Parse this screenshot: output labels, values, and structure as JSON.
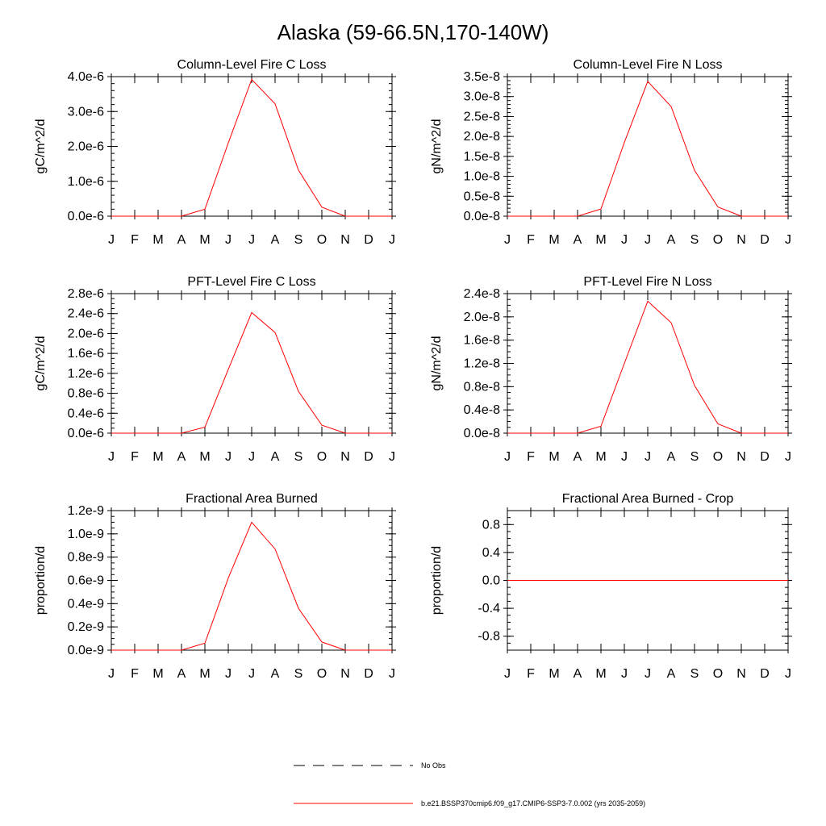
{
  "figure_title": "Alaska (59-66.5N,170-140W)",
  "months": [
    "J",
    "F",
    "M",
    "A",
    "M",
    "J",
    "J",
    "A",
    "S",
    "O",
    "N",
    "D",
    "J"
  ],
  "legend": {
    "obs_label": "No Obs",
    "model_label": "b.e21.BSSP370cmip6.f09_g17.CMIP6-SSP3-7.0.002 (yrs 2035-2059)",
    "model_color": "#ff0000",
    "obs_color": "#000000"
  },
  "chart_data": [
    {
      "type": "line",
      "title": "Column-Level Fire C Loss",
      "ylabel": "gC/m^2/d",
      "ylim": [
        0,
        4.0
      ],
      "yticks": [
        0,
        1,
        2,
        3,
        4
      ],
      "ytick_labels": [
        "0.0e-6",
        "1.0e-6",
        "2.0e-6",
        "3.0e-6",
        "4.0e-6"
      ],
      "minor_step": 0.2,
      "series": [
        {
          "name": "model",
          "values": [
            0,
            0,
            0,
            0,
            0.2,
            2.1,
            3.92,
            3.22,
            1.32,
            0.26,
            0,
            0,
            0
          ]
        }
      ]
    },
    {
      "type": "line",
      "title": "Column-Level Fire N Loss",
      "ylabel": "gN/m^2/d",
      "ylim": [
        0,
        3.5
      ],
      "yticks": [
        0,
        0.5,
        1.0,
        1.5,
        2.0,
        2.5,
        3.0,
        3.5
      ],
      "ytick_labels": [
        "0.0e-8",
        "0.5e-8",
        "1.0e-8",
        "1.5e-8",
        "2.0e-8",
        "2.5e-8",
        "3.0e-8",
        "3.5e-8"
      ],
      "minor_step": 0.1,
      "series": [
        {
          "name": "model",
          "values": [
            0,
            0,
            0,
            0,
            0.18,
            1.85,
            3.38,
            2.75,
            1.15,
            0.23,
            0,
            0,
            0
          ]
        }
      ]
    },
    {
      "type": "line",
      "title": "PFT-Level Fire C Loss",
      "ylabel": "gC/m^2/d",
      "ylim": [
        0,
        2.8
      ],
      "yticks": [
        0,
        0.4,
        0.8,
        1.2,
        1.6,
        2.0,
        2.4,
        2.8
      ],
      "ytick_labels": [
        "0.0e-6",
        "0.4e-6",
        "0.8e-6",
        "1.2e-6",
        "1.6e-6",
        "2.0e-6",
        "2.4e-6",
        "2.8e-6"
      ],
      "minor_step": 0.1,
      "series": [
        {
          "name": "model",
          "values": [
            0,
            0,
            0,
            0,
            0.12,
            1.28,
            2.42,
            2.02,
            0.84,
            0.16,
            0,
            0,
            0
          ]
        }
      ]
    },
    {
      "type": "line",
      "title": "PFT-Level Fire N Loss",
      "ylabel": "gN/m^2/d",
      "ylim": [
        0,
        2.4
      ],
      "yticks": [
        0,
        0.4,
        0.8,
        1.2,
        1.6,
        2.0,
        2.4
      ],
      "ytick_labels": [
        "0.0e-8",
        "0.4e-8",
        "0.8e-8",
        "1.2e-8",
        "1.6e-8",
        "2.0e-8",
        "2.4e-8"
      ],
      "minor_step": 0.1,
      "series": [
        {
          "name": "model",
          "values": [
            0,
            0,
            0,
            0,
            0.12,
            1.2,
            2.27,
            1.9,
            0.82,
            0.16,
            0,
            0,
            0
          ]
        }
      ]
    },
    {
      "type": "line",
      "title": "Fractional Area Burned",
      "ylabel": "proportion/d",
      "ylim": [
        0,
        1.2
      ],
      "yticks": [
        0,
        0.2,
        0.4,
        0.6,
        0.8,
        1.0,
        1.2
      ],
      "ytick_labels": [
        "0.0e-9",
        "0.2e-9",
        "0.4e-9",
        "0.6e-9",
        "0.8e-9",
        "1.0e-9",
        "1.2e-9"
      ],
      "minor_step": 0.05,
      "series": [
        {
          "name": "model",
          "values": [
            0,
            0,
            0,
            0,
            0.06,
            0.62,
            1.1,
            0.87,
            0.36,
            0.07,
            0,
            0,
            0
          ]
        }
      ]
    },
    {
      "type": "line",
      "title": "Fractional Area Burned - Crop",
      "ylabel": "proportion/d",
      "ylim": [
        -1.0,
        1.0
      ],
      "yticks": [
        -0.8,
        -0.4,
        0.0,
        0.4,
        0.8
      ],
      "ytick_labels": [
        "-0.8",
        "-0.4",
        "0.0",
        "0.4",
        "0.8"
      ],
      "minor_step": 0.1,
      "series": [
        {
          "name": "model",
          "values": [
            0,
            0,
            0,
            0,
            0,
            0,
            0,
            0,
            0,
            0,
            0,
            0,
            0
          ]
        }
      ]
    }
  ]
}
